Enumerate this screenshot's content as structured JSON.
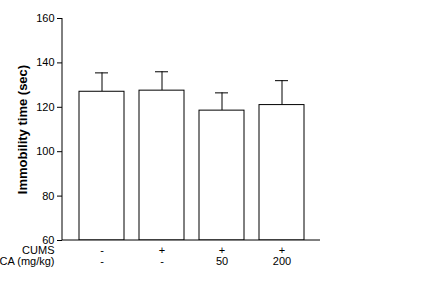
{
  "chart_data": {
    "type": "bar",
    "y_label": "Immobility time (sec)",
    "category_rows": [
      "CUMS",
      "CA (mg/kg)"
    ],
    "categories": [
      [
        "-",
        "-"
      ],
      [
        "+",
        "-"
      ],
      [
        "+",
        "50"
      ],
      [
        "+",
        "200"
      ]
    ],
    "values": [
      127,
      127.5,
      118.5,
      121
    ],
    "errors": [
      8.5,
      8.5,
      8,
      11
    ],
    "color": "#ffffff",
    "ylim": [
      60,
      160
    ],
    "yticks": [
      60,
      80,
      100,
      120,
      140,
      160
    ],
    "grid": false
  }
}
